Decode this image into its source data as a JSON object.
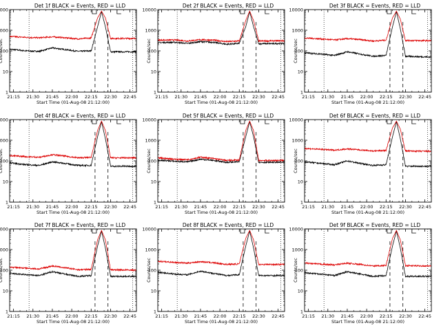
{
  "figure": {
    "description_text": "",
    "colors": {
      "events": "#000000",
      "lld": "#dd0000",
      "axes": "#000000",
      "background": "#ffffff"
    },
    "common": {
      "type": "line",
      "y_scale": "log",
      "ylim": [
        1,
        10000
      ],
      "y_ticks": [
        1,
        10,
        100,
        1000,
        10000
      ],
      "y_tick_labels": [
        "1",
        "10",
        "100",
        "1000",
        "10000"
      ],
      "x_tick_labels": [
        "21:15",
        "21:30",
        "21:45",
        "22:00",
        "22:15",
        "22:30",
        "22:45"
      ],
      "xlabel": "Start Time (01-Aug-08 21:12:00)",
      "ylabel": "Counts/sec"
    }
  },
  "chart_data": [
    {
      "type": "line",
      "title": "Det 1f BLACK = Events, RED = LLD",
      "xlabel": "Start Time (01-Aug-08 21:12:00)",
      "ylabel": "Counts/sec",
      "y_scale": "log",
      "ylim": [
        1,
        10000
      ],
      "x_tick_labels": [
        "21:15",
        "21:30",
        "21:45",
        "22:00",
        "22:15",
        "22:30",
        "22:45"
      ],
      "series": [
        {
          "name": "Events",
          "color": "#000000",
          "time": [
            "21:12",
            "21:25",
            "21:35",
            "21:45",
            "21:55",
            "22:05",
            "22:15",
            "22:20",
            "22:23",
            "22:26",
            "22:30",
            "22:50"
          ],
          "values": [
            120,
            100,
            95,
            140,
            115,
            95,
            100,
            1500,
            8000,
            1500,
            90,
            90
          ]
        },
        {
          "name": "LLD",
          "color": "#dd0000",
          "time": [
            "21:12",
            "21:25",
            "21:35",
            "21:45",
            "21:55",
            "22:05",
            "22:15",
            "22:20",
            "22:23",
            "22:26",
            "22:30",
            "22:50"
          ],
          "values": [
            500,
            450,
            430,
            480,
            430,
            380,
            420,
            4000,
            8500,
            4000,
            400,
            400
          ]
        }
      ]
    },
    {
      "type": "line",
      "title": "Det 2f BLACK = Events, RED = LLD",
      "xlabel": "Start Time (01-Aug-08 21:12:00)",
      "ylabel": "Counts/sec",
      "y_scale": "log",
      "ylim": [
        1,
        10000
      ],
      "x_tick_labels": [
        "21:15",
        "21:30",
        "21:45",
        "22:00",
        "22:15",
        "22:30",
        "22:45"
      ],
      "series": [
        {
          "name": "Events",
          "color": "#000000",
          "time": [
            "21:12",
            "21:25",
            "21:35",
            "21:45",
            "21:55",
            "22:05",
            "22:15",
            "22:20",
            "22:23",
            "22:26",
            "22:30",
            "22:50"
          ],
          "values": [
            250,
            260,
            230,
            280,
            260,
            210,
            230,
            1500,
            8000,
            1500,
            220,
            230
          ]
        },
        {
          "name": "LLD",
          "color": "#dd0000",
          "time": [
            "21:12",
            "21:25",
            "21:35",
            "21:45",
            "21:55",
            "22:05",
            "22:15",
            "22:20",
            "22:23",
            "22:26",
            "22:30",
            "22:50"
          ],
          "values": [
            330,
            340,
            300,
            350,
            330,
            280,
            300,
            3000,
            8500,
            3000,
            300,
            310
          ]
        }
      ]
    },
    {
      "type": "line",
      "title": "Det 3f BLACK = Events, RED = LLD",
      "xlabel": "Start Time (01-Aug-08 21:12:00)",
      "ylabel": "Counts/sec",
      "y_scale": "log",
      "ylim": [
        1,
        10000
      ],
      "x_tick_labels": [
        "21:15",
        "21:30",
        "21:45",
        "22:00",
        "22:15",
        "22:30",
        "22:45"
      ],
      "series": [
        {
          "name": "Events",
          "color": "#000000",
          "time": [
            "21:12",
            "21:25",
            "21:35",
            "21:45",
            "21:55",
            "22:05",
            "22:15",
            "22:20",
            "22:23",
            "22:26",
            "22:30",
            "22:50"
          ],
          "values": [
            80,
            70,
            60,
            90,
            70,
            55,
            60,
            1500,
            8000,
            1200,
            55,
            50
          ]
        },
        {
          "name": "LLD",
          "color": "#dd0000",
          "time": [
            "21:12",
            "21:25",
            "21:35",
            "21:45",
            "21:55",
            "22:05",
            "22:15",
            "22:20",
            "22:23",
            "22:26",
            "22:30",
            "22:50"
          ],
          "values": [
            420,
            380,
            340,
            390,
            350,
            300,
            330,
            4000,
            8500,
            3500,
            320,
            310
          ]
        }
      ]
    },
    {
      "type": "line",
      "title": "Det 4f BLACK = Events, RED = LLD",
      "xlabel": "Start Time (01-Aug-08 21:12:00)",
      "ylabel": "Counts/sec",
      "y_scale": "log",
      "ylim": [
        1,
        10000
      ],
      "x_tick_labels": [
        "21:15",
        "21:30",
        "21:45",
        "22:00",
        "22:15",
        "22:30",
        "22:45"
      ],
      "series": [
        {
          "name": "Events",
          "color": "#000000",
          "time": [
            "21:12",
            "21:25",
            "21:35",
            "21:45",
            "21:55",
            "22:05",
            "22:15",
            "22:20",
            "22:23",
            "22:26",
            "22:30",
            "22:50"
          ],
          "values": [
            80,
            65,
            60,
            90,
            75,
            60,
            60,
            1500,
            8000,
            1200,
            55,
            55
          ]
        },
        {
          "name": "LLD",
          "color": "#dd0000",
          "time": [
            "21:12",
            "21:25",
            "21:35",
            "21:45",
            "21:55",
            "22:05",
            "22:15",
            "22:20",
            "22:23",
            "22:26",
            "22:30",
            "22:50"
          ],
          "values": [
            180,
            160,
            150,
            200,
            170,
            140,
            150,
            3000,
            8500,
            3000,
            140,
            140
          ]
        }
      ]
    },
    {
      "type": "line",
      "title": "Det 5f BLACK = Events, RED = LLD",
      "xlabel": "Start Time (01-Aug-08 21:12:00)",
      "ylabel": "Counts/sec",
      "y_scale": "log",
      "ylim": [
        1,
        10000
      ],
      "x_tick_labels": [
        "21:15",
        "21:30",
        "21:45",
        "22:00",
        "22:15",
        "22:30",
        "22:45"
      ],
      "series": [
        {
          "name": "Events",
          "color": "#000000",
          "time": [
            "21:12",
            "21:25",
            "21:35",
            "21:45",
            "21:55",
            "22:05",
            "22:15",
            "22:20",
            "22:23",
            "22:26",
            "22:30",
            "22:50"
          ],
          "values": [
            110,
            95,
            90,
            120,
            105,
            85,
            90,
            1500,
            8000,
            1500,
            85,
            85
          ]
        },
        {
          "name": "LLD",
          "color": "#dd0000",
          "time": [
            "21:12",
            "21:25",
            "21:35",
            "21:45",
            "21:55",
            "22:05",
            "22:15",
            "22:20",
            "22:23",
            "22:26",
            "22:30",
            "22:50"
          ],
          "values": [
            140,
            120,
            115,
            150,
            130,
            105,
            110,
            3000,
            8500,
            3000,
            105,
            105
          ]
        }
      ]
    },
    {
      "type": "line",
      "title": "Det 6f BLACK = Events, RED = LLD",
      "xlabel": "Start Time (01-Aug-08 21:12:00)",
      "ylabel": "Counts/sec",
      "y_scale": "log",
      "ylim": [
        1,
        10000
      ],
      "x_tick_labels": [
        "21:15",
        "21:30",
        "21:45",
        "22:00",
        "22:15",
        "22:30",
        "22:45"
      ],
      "series": [
        {
          "name": "Events",
          "color": "#000000",
          "time": [
            "21:12",
            "21:25",
            "21:35",
            "21:45",
            "21:55",
            "22:05",
            "22:15",
            "22:20",
            "22:23",
            "22:26",
            "22:30",
            "22:50"
          ],
          "values": [
            90,
            75,
            65,
            100,
            75,
            60,
            65,
            1500,
            8000,
            1200,
            55,
            55
          ]
        },
        {
          "name": "LLD",
          "color": "#dd0000",
          "time": [
            "21:12",
            "21:25",
            "21:35",
            "21:45",
            "21:55",
            "22:05",
            "22:15",
            "22:20",
            "22:23",
            "22:26",
            "22:30",
            "22:50"
          ],
          "values": [
            400,
            360,
            330,
            380,
            340,
            300,
            320,
            4000,
            8500,
            3500,
            300,
            290
          ]
        }
      ]
    },
    {
      "type": "line",
      "title": "Det 7f BLACK = Events, RED = LLD",
      "xlabel": "Start Time (01-Aug-08 21:12:00)",
      "ylabel": "Counts/sec",
      "y_scale": "log",
      "ylim": [
        1,
        10000
      ],
      "x_tick_labels": [
        "21:15",
        "21:30",
        "21:45",
        "22:00",
        "22:15",
        "22:30",
        "22:45"
      ],
      "series": [
        {
          "name": "Events",
          "color": "#000000",
          "time": [
            "21:12",
            "21:25",
            "21:35",
            "21:45",
            "21:55",
            "22:05",
            "22:15",
            "22:20",
            "22:23",
            "22:26",
            "22:30",
            "22:50"
          ],
          "values": [
            70,
            60,
            55,
            85,
            65,
            50,
            55,
            1500,
            8000,
            1200,
            50,
            50
          ]
        },
        {
          "name": "LLD",
          "color": "#dd0000",
          "time": [
            "21:12",
            "21:25",
            "21:35",
            "21:45",
            "21:55",
            "22:05",
            "22:15",
            "22:20",
            "22:23",
            "22:26",
            "22:30",
            "22:50"
          ],
          "values": [
            140,
            125,
            115,
            160,
            130,
            105,
            110,
            3000,
            8500,
            3000,
            105,
            100
          ]
        }
      ]
    },
    {
      "type": "line",
      "title": "Det 8f BLACK = Events, RED = LLD",
      "xlabel": "Start Time (01-Aug-08 21:12:00)",
      "ylabel": "Counts/sec",
      "y_scale": "log",
      "ylim": [
        1,
        10000
      ],
      "x_tick_labels": [
        "21:15",
        "21:30",
        "21:45",
        "22:00",
        "22:15",
        "22:30",
        "22:45"
      ],
      "series": [
        {
          "name": "Events",
          "color": "#000000",
          "time": [
            "21:12",
            "21:25",
            "21:35",
            "21:45",
            "21:55",
            "22:05",
            "22:15",
            "22:20",
            "22:23",
            "22:26",
            "22:30",
            "22:50"
          ],
          "values": [
            80,
            65,
            60,
            90,
            70,
            55,
            60,
            1500,
            8000,
            1200,
            55,
            55
          ]
        },
        {
          "name": "LLD",
          "color": "#dd0000",
          "time": [
            "21:12",
            "21:25",
            "21:35",
            "21:45",
            "21:55",
            "22:05",
            "22:15",
            "22:20",
            "22:23",
            "22:26",
            "22:30",
            "22:50"
          ],
          "values": [
            270,
            240,
            220,
            260,
            230,
            190,
            200,
            3500,
            8500,
            3000,
            190,
            190
          ]
        }
      ]
    },
    {
      "type": "line",
      "title": "Det 9f BLACK = Events, RED = LLD",
      "xlabel": "Start Time (01-Aug-08 21:12:00)",
      "ylabel": "Counts/sec",
      "y_scale": "log",
      "ylim": [
        1,
        10000
      ],
      "x_tick_labels": [
        "21:15",
        "21:30",
        "21:45",
        "22:00",
        "22:15",
        "22:30",
        "22:45"
      ],
      "series": [
        {
          "name": "Events",
          "color": "#000000",
          "time": [
            "21:12",
            "21:25",
            "21:35",
            "21:45",
            "21:55",
            "22:05",
            "22:15",
            "22:20",
            "22:23",
            "22:26",
            "22:30",
            "22:50"
          ],
          "values": [
            75,
            65,
            55,
            85,
            65,
            50,
            55,
            1500,
            8000,
            1200,
            50,
            50
          ]
        },
        {
          "name": "LLD",
          "color": "#dd0000",
          "time": [
            "21:12",
            "21:25",
            "21:35",
            "21:45",
            "21:55",
            "22:05",
            "22:15",
            "22:20",
            "22:23",
            "22:26",
            "22:30",
            "22:50"
          ],
          "values": [
            220,
            195,
            180,
            220,
            190,
            160,
            170,
            3500,
            8500,
            3000,
            165,
            160
          ]
        }
      ]
    }
  ]
}
